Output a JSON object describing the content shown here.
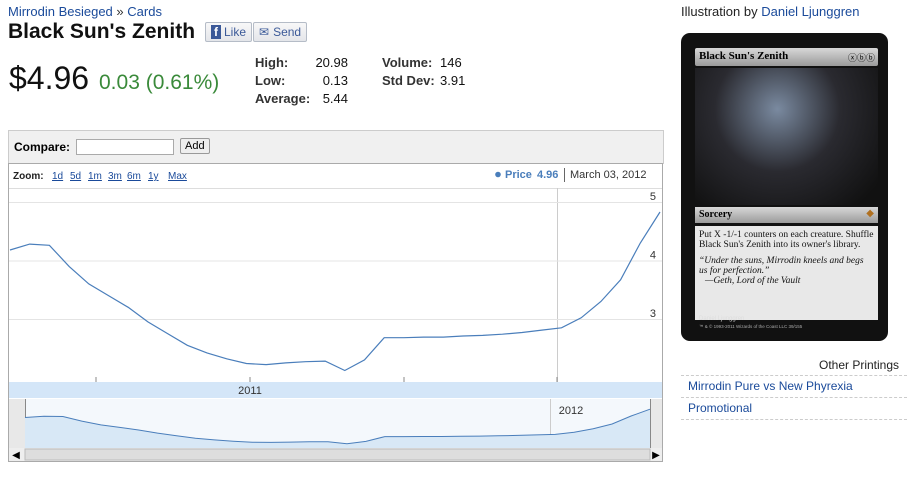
{
  "breadcrumb": {
    "set": "Mirrodin Besieged",
    "separator": "»",
    "section": "Cards"
  },
  "header": {
    "title": "Black Sun's Zenith",
    "like": "Like",
    "send": "Send"
  },
  "price": {
    "current": "$4.96",
    "change": "0.03 (0.61%)"
  },
  "stats": [
    {
      "label": "High:",
      "value": 20.98
    },
    {
      "label": "Low:",
      "value": 0.13
    },
    {
      "label": "Average:",
      "value": 5.44
    },
    {
      "label": "Volume:",
      "value": 146
    },
    {
      "label": "Std Dev:",
      "value": 3.91
    }
  ],
  "compare": {
    "label": "Compare:",
    "button": "Add"
  },
  "chart_data": {
    "type": "line",
    "zoom_label": "Zoom:",
    "zoom_options": [
      "1d",
      "5d",
      "1m",
      "3m",
      "6m",
      "1y",
      "Max"
    ],
    "legend": {
      "value": 4.96,
      "date": "March 03, 2012"
    },
    "series": [
      {
        "name": "Price",
        "color": "#4a7ebb",
        "values": [
          4.18,
          4.28,
          4.26,
          3.9,
          3.6,
          3.4,
          3.2,
          2.95,
          2.75,
          2.55,
          2.42,
          2.32,
          2.24,
          2.22,
          2.25,
          2.27,
          2.28,
          2.12,
          2.3,
          2.68,
          2.68,
          2.69,
          2.69,
          2.71,
          2.72,
          2.74,
          2.77,
          2.81,
          2.85,
          3.02,
          3.3,
          3.67,
          4.3,
          4.83
        ]
      }
    ],
    "ylim": [
      1.94,
      5.24
    ],
    "yticks": [
      3,
      4,
      5
    ],
    "x_labels": [
      "2011",
      "2012"
    ],
    "grid": true
  },
  "illustration": {
    "label": "Illustration by",
    "artist": "Daniel Ljunggren"
  },
  "card": {
    "name": "Black Sun's Zenith",
    "type_line": "Sorcery",
    "rules": "Put X -1/-1 counters on each creature. Shuffle Black Sun's Zenith into its owner's library.",
    "flavor": "“Under the suns, Mirrodin kneels and begs us for perfection.”",
    "attribution": "—Geth, Lord of the Vault",
    "artist_credit": "Daniel Ljunggren",
    "copyright": "™ & © 1993-2011 Wizards of the Coast LLC 39/155"
  },
  "other_printings": {
    "title": "Other Printings",
    "items": [
      "Mirrodin Pure vs New Phyrexia",
      "Promotional"
    ]
  }
}
